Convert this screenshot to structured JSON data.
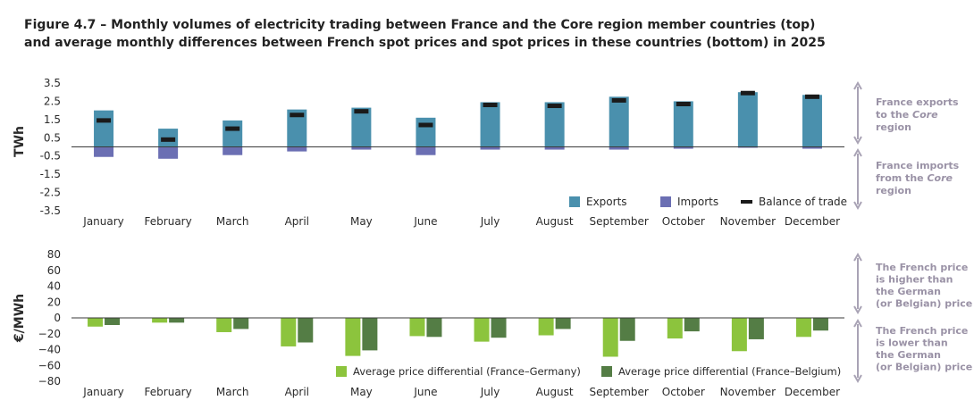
{
  "title": {
    "line1": "Figure 4.7 – Monthly volumes of electricity trading between France and the Core region member countries (top)",
    "line2": "and average monthly differences between French spot prices and spot prices in these countries (bottom) in 2025"
  },
  "colors": {
    "exports": "#4a90ad",
    "imports": "#6b6fb3",
    "balance": "#1a1a1a",
    "diff_de": "#8cc43d",
    "diff_be": "#547d45",
    "annotation": "#9a92a6",
    "arrow": "#a9a3b5"
  },
  "chart_data": [
    {
      "type": "bar",
      "subtype": "stacked-with-marker",
      "ylabel": "TWh",
      "ylim": [
        -3.5,
        3.5
      ],
      "yticks": [
        "3.5",
        "2.5",
        "1.5",
        "0.5",
        "-0.5",
        "-1.5",
        "-2.5",
        "-3.5"
      ],
      "ytick_values": [
        3.5,
        2.5,
        1.5,
        0.5,
        -0.5,
        -1.5,
        -2.5,
        -3.5
      ],
      "categories": [
        "January",
        "February",
        "March",
        "April",
        "May",
        "June",
        "July",
        "August",
        "September",
        "October",
        "November",
        "December"
      ],
      "series": [
        {
          "name": "Exports",
          "values": [
            2.0,
            1.0,
            1.45,
            2.05,
            2.15,
            1.6,
            2.45,
            2.45,
            2.75,
            2.5,
            3.0,
            2.85
          ]
        },
        {
          "name": "Imports",
          "values": [
            -0.55,
            -0.65,
            -0.45,
            -0.25,
            -0.15,
            -0.45,
            -0.15,
            -0.15,
            -0.15,
            -0.1,
            -0.05,
            -0.1
          ]
        },
        {
          "name": "Balance of trade",
          "values": [
            1.45,
            0.4,
            1.0,
            1.75,
            1.95,
            1.2,
            2.3,
            2.25,
            2.55,
            2.35,
            2.95,
            2.75
          ]
        }
      ],
      "legend": [
        "Exports",
        "Imports",
        "Balance of trade"
      ],
      "legend_position": "bottom-right",
      "annotations": {
        "upper": [
          "France exports",
          "to the ",
          "Core",
          "region"
        ],
        "lower": [
          "France imports",
          "from the ",
          "Core",
          "region"
        ]
      }
    },
    {
      "type": "bar",
      "subtype": "grouped",
      "ylabel": "€/MWh",
      "ylim": [
        -80,
        80
      ],
      "yticks": [
        "80",
        "60",
        "40",
        "20",
        "0",
        "−20",
        "−40",
        "−60",
        "−80"
      ],
      "ytick_values": [
        80,
        60,
        40,
        20,
        0,
        -20,
        -40,
        -60,
        -80
      ],
      "categories": [
        "January",
        "February",
        "March",
        "April",
        "May",
        "June",
        "July",
        "August",
        "September",
        "October",
        "November",
        "December"
      ],
      "series": [
        {
          "name": "Average price differential (France–Germany)",
          "values": [
            -11,
            -6,
            -18,
            -36,
            -48,
            -23,
            -30,
            -22,
            -49,
            -26,
            -42,
            -24
          ]
        },
        {
          "name": "Average price differential (France–Belgium)",
          "values": [
            -9,
            -6,
            -14,
            -31,
            -41,
            -24,
            -25,
            -14,
            -29,
            -17,
            -27,
            -16
          ]
        }
      ],
      "legend_position": "bottom-right",
      "annotations": {
        "upper": [
          "The French price",
          "is higher than",
          "the German",
          "(or Belgian) price"
        ],
        "lower": [
          "The French price",
          "is lower than",
          "the German",
          "(or Belgian) price"
        ]
      }
    }
  ]
}
